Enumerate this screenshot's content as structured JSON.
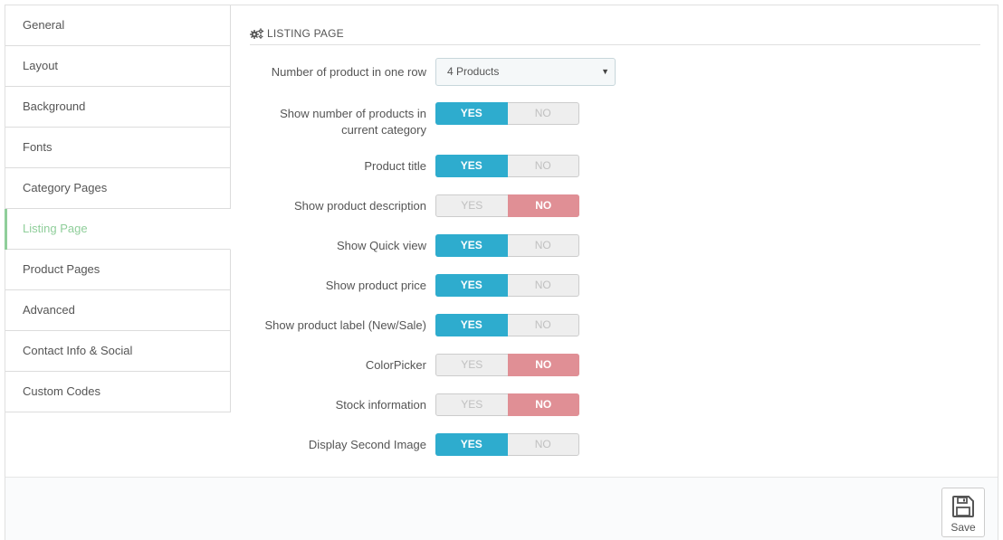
{
  "sidebar": {
    "items": [
      {
        "label": "General"
      },
      {
        "label": "Layout"
      },
      {
        "label": "Background"
      },
      {
        "label": "Fonts"
      },
      {
        "label": "Category Pages"
      },
      {
        "label": "Listing Page",
        "active": true
      },
      {
        "label": "Product Pages"
      },
      {
        "label": "Advanced"
      },
      {
        "label": "Contact Info & Social"
      },
      {
        "label": "Custom Codes"
      }
    ]
  },
  "panel": {
    "title": "LISTING PAGE",
    "title_icon": "cogs-icon",
    "products_per_row": {
      "label": "Number of product in one row",
      "value": "4 Products"
    },
    "switches": [
      {
        "label_line1": "Show number of products in",
        "label_line2": "current category",
        "value": "yes"
      },
      {
        "label_line1": "Product title",
        "value": "yes"
      },
      {
        "label_line1": "Show product description",
        "value": "no"
      },
      {
        "label_line1": "Show Quick view",
        "value": "yes"
      },
      {
        "label_line1": "Show product price",
        "value": "yes"
      },
      {
        "label_line1": "Show product label (New/Sale)",
        "value": "yes"
      },
      {
        "label_line1": "ColorPicker",
        "value": "no"
      },
      {
        "label_line1": "Stock information",
        "value": "no"
      },
      {
        "label_line1": "Display Second Image",
        "value": "yes"
      }
    ],
    "yes_label": "YES",
    "no_label": "NO"
  },
  "footer": {
    "save_label": "Save",
    "save_icon": "floppy-disk-icon"
  },
  "colors": {
    "yes_active": "#2eacce",
    "no_active": "#e08f95",
    "sidebar_active": "#8fce9a"
  }
}
